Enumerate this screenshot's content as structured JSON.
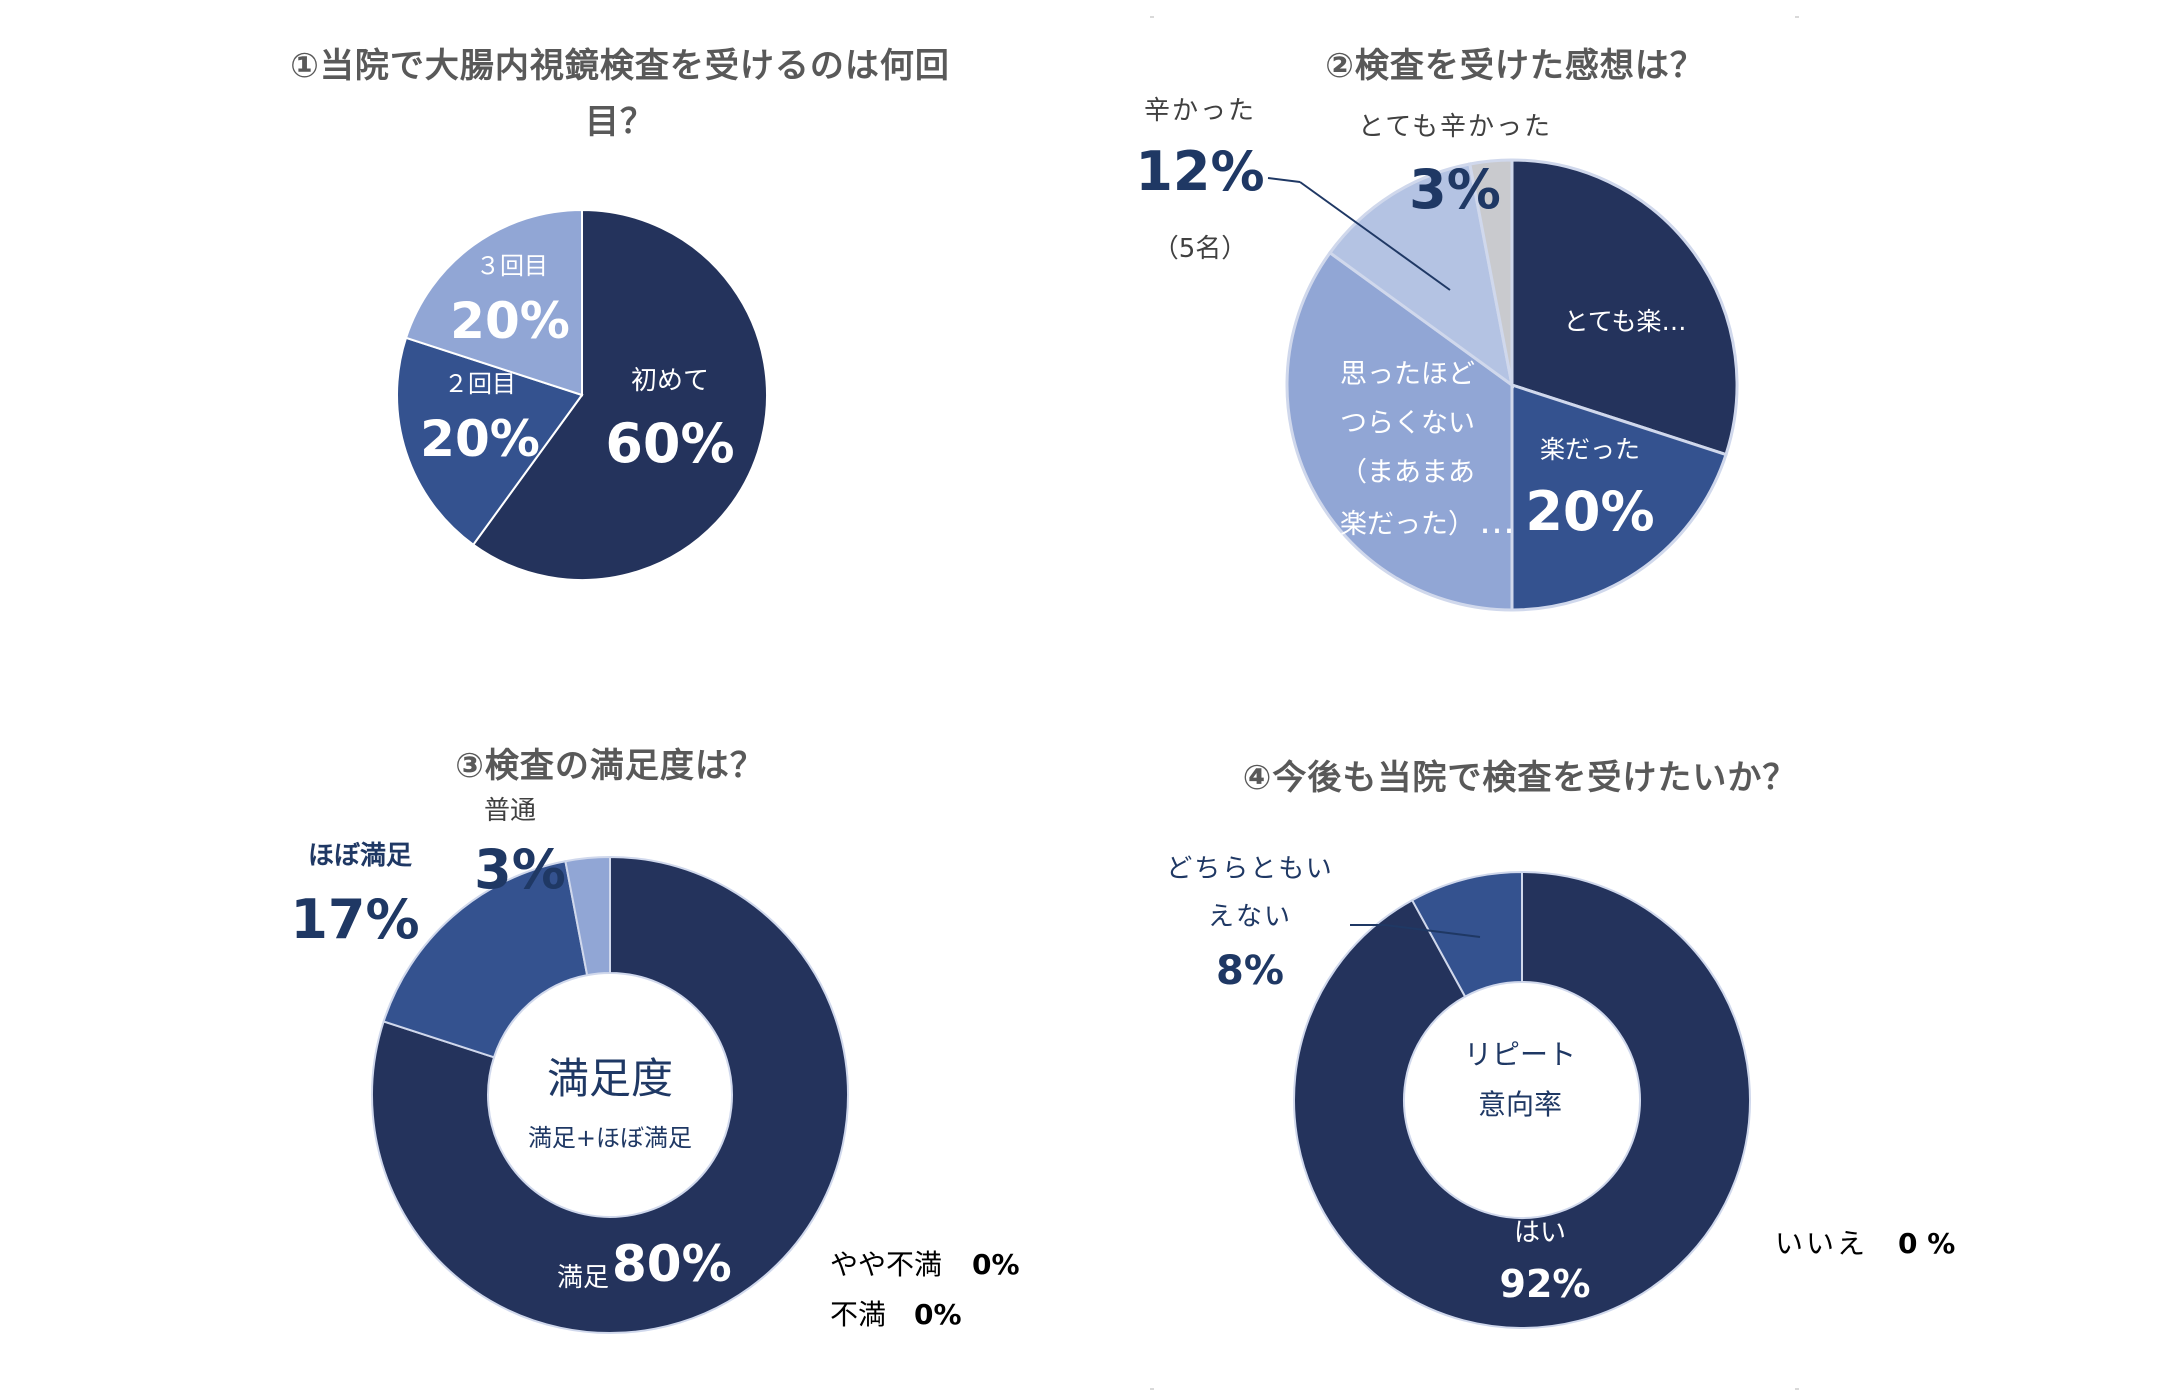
{
  "chart_data": [
    {
      "type": "pie",
      "title": "①当院で大腸内視鏡検査を受けるのは何回目？",
      "title_lines": [
        "①当院で大腸内視鏡検査を受けるのは何回",
        "目？"
      ],
      "categories": [
        "初めて",
        "２回目",
        "３回目"
      ],
      "values": [
        60,
        20,
        20
      ],
      "value_labels": [
        "60%",
        "20%",
        "20%"
      ],
      "colors": [
        "#24335c",
        "#34528f",
        "#91a6d5"
      ]
    },
    {
      "type": "pie",
      "title": "②検査を受けた感想は？",
      "categories": [
        "とても楽…",
        "楽だった",
        "思ったほどつらくない（まあまあ楽だった）",
        "辛かった",
        "とても辛かった"
      ],
      "values": [
        30,
        20,
        35,
        12,
        3
      ],
      "value_labels": [
        "",
        "20%",
        "",
        "12%",
        "3%"
      ],
      "annotations": {
        "tsurakatta_note": "（5名）",
        "mid_lines": [
          "思ったほど",
          "つらくない",
          "（まあまあ",
          "楽だった）"
        ],
        "mid_suffix": "…"
      },
      "colors": [
        "#24335c",
        "#34528f",
        "#91a6d5",
        "#b4c3e3",
        "#c9cace"
      ]
    },
    {
      "type": "donut",
      "title": "③検査の満足度は？",
      "categories": [
        "満足",
        "ほぼ満足",
        "普通",
        "やや不満",
        "不満"
      ],
      "values": [
        80,
        17,
        3,
        0,
        0
      ],
      "value_labels": [
        "80%",
        "17%",
        "3%",
        "0%",
        "0%"
      ],
      "center_title": "満足度",
      "center_sub": "満足+ほぼ満足",
      "colors": [
        "#24335c",
        "#34528f",
        "#91a6d5",
        "#b4c3e3",
        "#c9cace"
      ]
    },
    {
      "type": "donut",
      "title": "④今後も当院で検査を受けたいか？",
      "categories": [
        "はい",
        "どちらともいえない",
        "いいえ"
      ],
      "category_lines": {
        "neutral": [
          "どちらともい",
          "えない"
        ]
      },
      "values": [
        92,
        8,
        0
      ],
      "value_labels": [
        "92%",
        "8%",
        "0 %"
      ],
      "center_lines": [
        "リピート",
        "意向率"
      ],
      "colors": [
        "#24335c",
        "#34528f",
        "#91a6d5"
      ]
    }
  ]
}
